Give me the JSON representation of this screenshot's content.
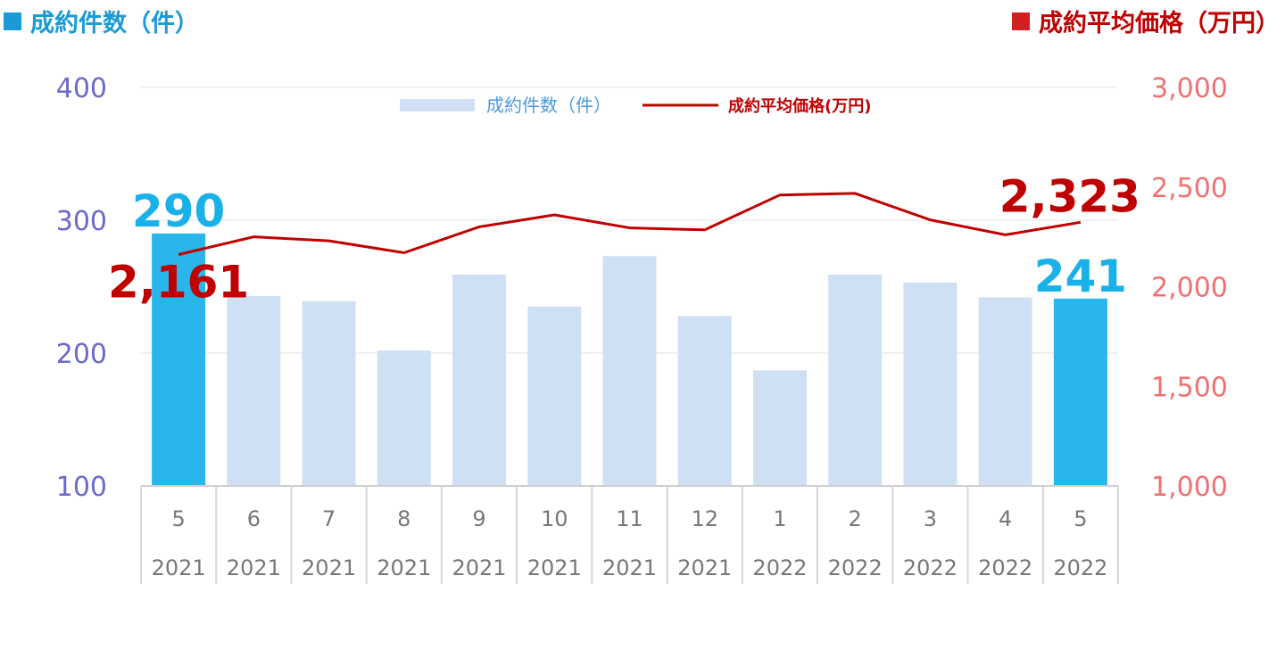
{
  "header": {
    "left_title": "成約件数（件）",
    "right_title": "成約平均価格（万円）",
    "left_color": "#1a9ad6",
    "right_color": "#d21f1f"
  },
  "chart_data": {
    "type": "bar",
    "categories": [
      [
        "5",
        "2021"
      ],
      [
        "6",
        "2021"
      ],
      [
        "7",
        "2021"
      ],
      [
        "8",
        "2021"
      ],
      [
        "9",
        "2021"
      ],
      [
        "10",
        "2021"
      ],
      [
        "11",
        "2021"
      ],
      [
        "12",
        "2021"
      ],
      [
        "1",
        "2022"
      ],
      [
        "2",
        "2022"
      ],
      [
        "3",
        "2022"
      ],
      [
        "4",
        "2022"
      ],
      [
        "5",
        "2022"
      ]
    ],
    "series": [
      {
        "name": "成約件数（件）",
        "type": "bar",
        "axis": "left",
        "values": [
          290,
          243,
          239,
          202,
          259,
          235,
          273,
          228,
          187,
          259,
          253,
          242,
          241
        ],
        "highlight_indices": [
          0,
          12
        ],
        "color": "#cfe0f4",
        "highlight_color": "#29b6ea"
      },
      {
        "name": "成約平均価格(万円)",
        "type": "line",
        "axis": "right",
        "values": [
          2161,
          2250,
          2230,
          2170,
          2300,
          2360,
          2295,
          2285,
          2460,
          2468,
          2335,
          2260,
          2323
        ],
        "color": "#c00000"
      }
    ],
    "y_left": {
      "min": 100,
      "max": 400,
      "ticks": [
        "100",
        "200",
        "300",
        "400"
      ]
    },
    "y_right": {
      "min": 1000,
      "max": 3000,
      "ticks": [
        "1,000",
        "1,500",
        "2,000",
        "2,500",
        "3,000"
      ]
    },
    "data_labels": [
      {
        "text": "290",
        "series": 0,
        "index": 0
      },
      {
        "text": "241",
        "series": 0,
        "index": 12
      },
      {
        "text": "2,161",
        "series": 1,
        "index": 0
      },
      {
        "text": "2,323",
        "series": 1,
        "index": 12
      }
    ],
    "legend_position": "top-center",
    "grid": true
  }
}
